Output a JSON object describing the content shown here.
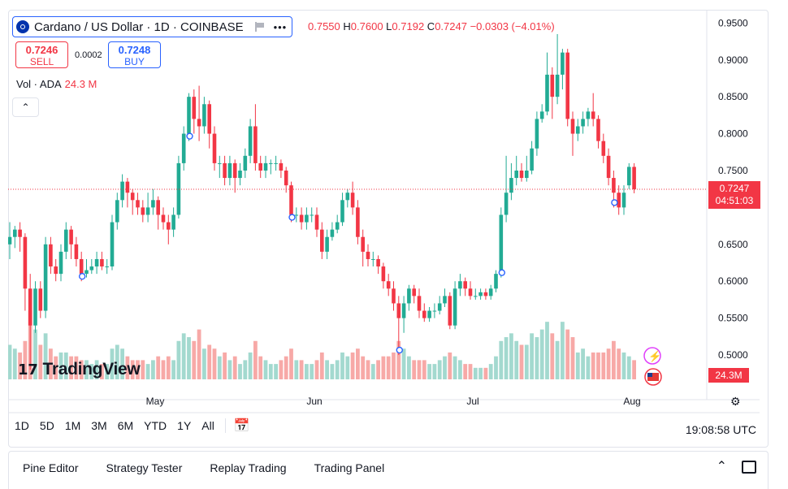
{
  "symbol": {
    "title": "Cardano / US Dollar · 1D · COINBASE",
    "more": "•••"
  },
  "ohlc": {
    "o_value": "0.7550",
    "h_label": "H",
    "h_value": "0.7600",
    "l_label": "L",
    "l_value": "0.7192",
    "c_label": "C",
    "c_value": "0.7247",
    "change": "−0.0303 (−4.01%)"
  },
  "trade": {
    "sell_price": "0.7246",
    "sell_label": "SELL",
    "spread": "0.0002",
    "buy_price": "0.7248",
    "buy_label": "BUY"
  },
  "volume": {
    "label": "Vol · ADA",
    "value": "24.3 M",
    "scale_label": "24.3M"
  },
  "last_price": {
    "price": "0.7247",
    "countdown": "04:51:03"
  },
  "logo_text": "TradingView",
  "time_ranges": [
    "1D",
    "5D",
    "1M",
    "3M",
    "6M",
    "YTD",
    "1Y",
    "All"
  ],
  "clock": "19:08:58 UTC",
  "bottom_tabs": [
    "Pine Editor",
    "Strategy Tester",
    "Replay Trading",
    "Trading Panel"
  ],
  "colors": {
    "up": "#22ab94",
    "down": "#f23645",
    "up_vol": "#a3d9cf",
    "down_vol": "#f7a9a7",
    "accent": "#2962ff"
  },
  "chart_data": {
    "type": "candlestick",
    "x_tick_labels": [
      "May",
      "Jun",
      "Jul",
      "Aug"
    ],
    "y_ticks": [
      0.95,
      0.9,
      0.85,
      0.8,
      0.75,
      0.65,
      0.6,
      0.55,
      0.5
    ],
    "ylim": [
      0.467,
      0.968
    ],
    "last_price": 0.7247,
    "candles": [
      {
        "o": 0.65,
        "c": 0.66,
        "h": 0.68,
        "l": 0.63,
        "v": 0.9
      },
      {
        "o": 0.66,
        "c": 0.67,
        "h": 0.675,
        "l": 0.645,
        "v": 0.8
      },
      {
        "o": 0.67,
        "c": 0.66,
        "h": 0.68,
        "l": 0.64,
        "v": 0.7
      },
      {
        "o": 0.66,
        "c": 0.59,
        "h": 0.665,
        "l": 0.56,
        "v": 1.0
      },
      {
        "o": 0.59,
        "c": 0.54,
        "h": 0.61,
        "l": 0.48,
        "v": 1.8
      },
      {
        "o": 0.54,
        "c": 0.59,
        "h": 0.6,
        "l": 0.53,
        "v": 1.3
      },
      {
        "o": 0.59,
        "c": 0.56,
        "h": 0.6,
        "l": 0.55,
        "v": 0.9
      },
      {
        "o": 0.56,
        "c": 0.65,
        "h": 0.66,
        "l": 0.55,
        "v": 1.2
      },
      {
        "o": 0.65,
        "c": 0.62,
        "h": 0.66,
        "l": 0.61,
        "v": 0.8
      },
      {
        "o": 0.62,
        "c": 0.61,
        "h": 0.63,
        "l": 0.6,
        "v": 0.6
      },
      {
        "o": 0.61,
        "c": 0.64,
        "h": 0.65,
        "l": 0.6,
        "v": 0.7
      },
      {
        "o": 0.64,
        "c": 0.67,
        "h": 0.68,
        "l": 0.63,
        "v": 0.7
      },
      {
        "o": 0.67,
        "c": 0.65,
        "h": 0.675,
        "l": 0.63,
        "v": 0.6
      },
      {
        "o": 0.65,
        "c": 0.63,
        "h": 0.66,
        "l": 0.62,
        "v": 0.6
      },
      {
        "o": 0.63,
        "c": 0.61,
        "h": 0.64,
        "l": 0.6,
        "v": 0.5
      },
      {
        "o": 0.61,
        "c": 0.615,
        "h": 0.63,
        "l": 0.605,
        "v": 0.5
      },
      {
        "o": 0.615,
        "c": 0.62,
        "h": 0.63,
        "l": 0.61,
        "v": 0.4
      },
      {
        "o": 0.62,
        "c": 0.63,
        "h": 0.64,
        "l": 0.61,
        "v": 0.5
      },
      {
        "o": 0.63,
        "c": 0.62,
        "h": 0.64,
        "l": 0.615,
        "v": 0.4
      },
      {
        "o": 0.62,
        "c": 0.62,
        "h": 0.63,
        "l": 0.61,
        "v": 0.4
      },
      {
        "o": 0.62,
        "c": 0.68,
        "h": 0.69,
        "l": 0.615,
        "v": 0.8
      },
      {
        "o": 0.68,
        "c": 0.71,
        "h": 0.72,
        "l": 0.67,
        "v": 0.9
      },
      {
        "o": 0.71,
        "c": 0.735,
        "h": 0.745,
        "l": 0.7,
        "v": 0.8
      },
      {
        "o": 0.735,
        "c": 0.72,
        "h": 0.74,
        "l": 0.7,
        "v": 0.6
      },
      {
        "o": 0.72,
        "c": 0.71,
        "h": 0.725,
        "l": 0.69,
        "v": 0.5
      },
      {
        "o": 0.71,
        "c": 0.7,
        "h": 0.72,
        "l": 0.69,
        "v": 0.5
      },
      {
        "o": 0.7,
        "c": 0.69,
        "h": 0.71,
        "l": 0.68,
        "v": 0.5
      },
      {
        "o": 0.69,
        "c": 0.7,
        "h": 0.72,
        "l": 0.68,
        "v": 0.4
      },
      {
        "o": 0.7,
        "c": 0.71,
        "h": 0.725,
        "l": 0.69,
        "v": 0.5
      },
      {
        "o": 0.71,
        "c": 0.69,
        "h": 0.715,
        "l": 0.67,
        "v": 0.6
      },
      {
        "o": 0.69,
        "c": 0.68,
        "h": 0.7,
        "l": 0.67,
        "v": 0.5
      },
      {
        "o": 0.68,
        "c": 0.67,
        "h": 0.69,
        "l": 0.65,
        "v": 0.6
      },
      {
        "o": 0.67,
        "c": 0.69,
        "h": 0.7,
        "l": 0.66,
        "v": 0.5
      },
      {
        "o": 0.69,
        "c": 0.76,
        "h": 0.77,
        "l": 0.685,
        "v": 1.0
      },
      {
        "o": 0.76,
        "c": 0.8,
        "h": 0.81,
        "l": 0.75,
        "v": 1.2
      },
      {
        "o": 0.8,
        "c": 0.85,
        "h": 0.855,
        "l": 0.79,
        "v": 1.1
      },
      {
        "o": 0.85,
        "c": 0.82,
        "h": 0.86,
        "l": 0.8,
        "v": 1.0
      },
      {
        "o": 0.82,
        "c": 0.81,
        "h": 0.865,
        "l": 0.79,
        "v": 1.3
      },
      {
        "o": 0.81,
        "c": 0.84,
        "h": 0.85,
        "l": 0.8,
        "v": 0.8
      },
      {
        "o": 0.84,
        "c": 0.8,
        "h": 0.845,
        "l": 0.78,
        "v": 0.9
      },
      {
        "o": 0.8,
        "c": 0.76,
        "h": 0.81,
        "l": 0.75,
        "v": 0.8
      },
      {
        "o": 0.76,
        "c": 0.76,
        "h": 0.77,
        "l": 0.74,
        "v": 0.6
      },
      {
        "o": 0.76,
        "c": 0.74,
        "h": 0.77,
        "l": 0.73,
        "v": 0.7
      },
      {
        "o": 0.74,
        "c": 0.76,
        "h": 0.77,
        "l": 0.73,
        "v": 0.5
      },
      {
        "o": 0.76,
        "c": 0.74,
        "h": 0.765,
        "l": 0.72,
        "v": 0.6
      },
      {
        "o": 0.74,
        "c": 0.75,
        "h": 0.76,
        "l": 0.73,
        "v": 0.4
      },
      {
        "o": 0.75,
        "c": 0.77,
        "h": 0.78,
        "l": 0.74,
        "v": 0.5
      },
      {
        "o": 0.77,
        "c": 0.81,
        "h": 0.82,
        "l": 0.76,
        "v": 0.7
      },
      {
        "o": 0.81,
        "c": 0.76,
        "h": 0.84,
        "l": 0.75,
        "v": 1.0
      },
      {
        "o": 0.76,
        "c": 0.75,
        "h": 0.77,
        "l": 0.74,
        "v": 0.6
      },
      {
        "o": 0.75,
        "c": 0.76,
        "h": 0.77,
        "l": 0.74,
        "v": 0.5
      },
      {
        "o": 0.76,
        "c": 0.76,
        "h": 0.765,
        "l": 0.745,
        "v": 0.4
      },
      {
        "o": 0.76,
        "c": 0.76,
        "h": 0.77,
        "l": 0.75,
        "v": 0.4
      },
      {
        "o": 0.76,
        "c": 0.75,
        "h": 0.765,
        "l": 0.74,
        "v": 0.5
      },
      {
        "o": 0.75,
        "c": 0.73,
        "h": 0.755,
        "l": 0.72,
        "v": 0.6
      },
      {
        "o": 0.73,
        "c": 0.69,
        "h": 0.735,
        "l": 0.68,
        "v": 0.8
      },
      {
        "o": 0.69,
        "c": 0.69,
        "h": 0.7,
        "l": 0.68,
        "v": 0.5
      },
      {
        "o": 0.69,
        "c": 0.68,
        "h": 0.7,
        "l": 0.67,
        "v": 0.5
      },
      {
        "o": 0.68,
        "c": 0.69,
        "h": 0.7,
        "l": 0.67,
        "v": 0.4
      },
      {
        "o": 0.69,
        "c": 0.69,
        "h": 0.7,
        "l": 0.68,
        "v": 0.4
      },
      {
        "o": 0.69,
        "c": 0.67,
        "h": 0.7,
        "l": 0.66,
        "v": 0.5
      },
      {
        "o": 0.67,
        "c": 0.64,
        "h": 0.68,
        "l": 0.63,
        "v": 0.7
      },
      {
        "o": 0.64,
        "c": 0.66,
        "h": 0.67,
        "l": 0.63,
        "v": 0.5
      },
      {
        "o": 0.66,
        "c": 0.67,
        "h": 0.68,
        "l": 0.655,
        "v": 0.4
      },
      {
        "o": 0.67,
        "c": 0.68,
        "h": 0.69,
        "l": 0.665,
        "v": 0.5
      },
      {
        "o": 0.68,
        "c": 0.71,
        "h": 0.72,
        "l": 0.675,
        "v": 0.7
      },
      {
        "o": 0.71,
        "c": 0.72,
        "h": 0.725,
        "l": 0.7,
        "v": 0.6
      },
      {
        "o": 0.72,
        "c": 0.7,
        "h": 0.735,
        "l": 0.69,
        "v": 0.7
      },
      {
        "o": 0.7,
        "c": 0.66,
        "h": 0.71,
        "l": 0.65,
        "v": 0.8
      },
      {
        "o": 0.66,
        "c": 0.64,
        "h": 0.67,
        "l": 0.62,
        "v": 0.6
      },
      {
        "o": 0.64,
        "c": 0.63,
        "h": 0.65,
        "l": 0.62,
        "v": 0.5
      },
      {
        "o": 0.63,
        "c": 0.63,
        "h": 0.64,
        "l": 0.62,
        "v": 0.4
      },
      {
        "o": 0.63,
        "c": 0.62,
        "h": 0.635,
        "l": 0.61,
        "v": 0.5
      },
      {
        "o": 0.62,
        "c": 0.6,
        "h": 0.625,
        "l": 0.59,
        "v": 0.6
      },
      {
        "o": 0.6,
        "c": 0.59,
        "h": 0.61,
        "l": 0.58,
        "v": 0.6
      },
      {
        "o": 0.59,
        "c": 0.57,
        "h": 0.6,
        "l": 0.56,
        "v": 0.7
      },
      {
        "o": 0.57,
        "c": 0.55,
        "h": 0.58,
        "l": 0.5,
        "v": 1.0
      },
      {
        "o": 0.55,
        "c": 0.57,
        "h": 0.58,
        "l": 0.53,
        "v": 0.8
      },
      {
        "o": 0.57,
        "c": 0.59,
        "h": 0.595,
        "l": 0.56,
        "v": 0.6
      },
      {
        "o": 0.59,
        "c": 0.58,
        "h": 0.595,
        "l": 0.57,
        "v": 0.5
      },
      {
        "o": 0.58,
        "c": 0.56,
        "h": 0.59,
        "l": 0.55,
        "v": 0.5
      },
      {
        "o": 0.56,
        "c": 0.55,
        "h": 0.57,
        "l": 0.545,
        "v": 0.5
      },
      {
        "o": 0.55,
        "c": 0.56,
        "h": 0.565,
        "l": 0.545,
        "v": 0.4
      },
      {
        "o": 0.56,
        "c": 0.56,
        "h": 0.57,
        "l": 0.55,
        "v": 0.4
      },
      {
        "o": 0.56,
        "c": 0.57,
        "h": 0.58,
        "l": 0.555,
        "v": 0.5
      },
      {
        "o": 0.57,
        "c": 0.58,
        "h": 0.59,
        "l": 0.565,
        "v": 0.6
      },
      {
        "o": 0.58,
        "c": 0.54,
        "h": 0.585,
        "l": 0.535,
        "v": 0.7
      },
      {
        "o": 0.54,
        "c": 0.59,
        "h": 0.6,
        "l": 0.535,
        "v": 0.6
      },
      {
        "o": 0.59,
        "c": 0.6,
        "h": 0.61,
        "l": 0.58,
        "v": 0.5
      },
      {
        "o": 0.6,
        "c": 0.59,
        "h": 0.605,
        "l": 0.58,
        "v": 0.4
      },
      {
        "o": 0.59,
        "c": 0.58,
        "h": 0.6,
        "l": 0.575,
        "v": 0.4
      },
      {
        "o": 0.58,
        "c": 0.58,
        "h": 0.59,
        "l": 0.575,
        "v": 0.3
      },
      {
        "o": 0.58,
        "c": 0.585,
        "h": 0.59,
        "l": 0.575,
        "v": 0.3
      },
      {
        "o": 0.585,
        "c": 0.58,
        "h": 0.59,
        "l": 0.575,
        "v": 0.3
      },
      {
        "o": 0.58,
        "c": 0.59,
        "h": 0.595,
        "l": 0.575,
        "v": 0.4
      },
      {
        "o": 0.59,
        "c": 0.61,
        "h": 0.615,
        "l": 0.585,
        "v": 0.6
      },
      {
        "o": 0.61,
        "c": 0.69,
        "h": 0.7,
        "l": 0.605,
        "v": 1.0
      },
      {
        "o": 0.69,
        "c": 0.72,
        "h": 0.77,
        "l": 0.68,
        "v": 1.1
      },
      {
        "o": 0.72,
        "c": 0.74,
        "h": 0.76,
        "l": 0.71,
        "v": 1.2
      },
      {
        "o": 0.74,
        "c": 0.75,
        "h": 0.77,
        "l": 0.73,
        "v": 1.0
      },
      {
        "o": 0.75,
        "c": 0.74,
        "h": 0.76,
        "l": 0.735,
        "v": 0.9
      },
      {
        "o": 0.74,
        "c": 0.75,
        "h": 0.77,
        "l": 0.735,
        "v": 0.9
      },
      {
        "o": 0.75,
        "c": 0.78,
        "h": 0.79,
        "l": 0.745,
        "v": 1.2
      },
      {
        "o": 0.78,
        "c": 0.82,
        "h": 0.83,
        "l": 0.77,
        "v": 1.1
      },
      {
        "o": 0.82,
        "c": 0.83,
        "h": 0.84,
        "l": 0.815,
        "v": 1.3
      },
      {
        "o": 0.83,
        "c": 0.88,
        "h": 0.91,
        "l": 0.825,
        "v": 1.5
      },
      {
        "o": 0.88,
        "c": 0.85,
        "h": 0.89,
        "l": 0.82,
        "v": 1.2
      },
      {
        "o": 0.85,
        "c": 0.88,
        "h": 0.935,
        "l": 0.84,
        "v": 1.0
      },
      {
        "o": 0.88,
        "c": 0.91,
        "h": 0.915,
        "l": 0.86,
        "v": 1.5
      },
      {
        "o": 0.91,
        "c": 0.82,
        "h": 0.915,
        "l": 0.81,
        "v": 1.3
      },
      {
        "o": 0.82,
        "c": 0.8,
        "h": 0.83,
        "l": 0.77,
        "v": 1.1
      },
      {
        "o": 0.8,
        "c": 0.81,
        "h": 0.82,
        "l": 0.79,
        "v": 0.7
      },
      {
        "o": 0.81,
        "c": 0.82,
        "h": 0.83,
        "l": 0.8,
        "v": 0.8
      },
      {
        "o": 0.82,
        "c": 0.83,
        "h": 0.835,
        "l": 0.81,
        "v": 0.6
      },
      {
        "o": 0.83,
        "c": 0.82,
        "h": 0.855,
        "l": 0.81,
        "v": 0.7
      },
      {
        "o": 0.82,
        "c": 0.79,
        "h": 0.825,
        "l": 0.78,
        "v": 0.7
      },
      {
        "o": 0.79,
        "c": 0.77,
        "h": 0.8,
        "l": 0.76,
        "v": 0.7
      },
      {
        "o": 0.77,
        "c": 0.74,
        "h": 0.78,
        "l": 0.73,
        "v": 0.8
      },
      {
        "o": 0.74,
        "c": 0.72,
        "h": 0.75,
        "l": 0.7,
        "v": 1.0
      },
      {
        "o": 0.72,
        "c": 0.7,
        "h": 0.73,
        "l": 0.69,
        "v": 0.8
      },
      {
        "o": 0.7,
        "c": 0.72,
        "h": 0.73,
        "l": 0.69,
        "v": 0.7
      },
      {
        "o": 0.73,
        "c": 0.755,
        "h": 0.76,
        "l": 0.725,
        "v": 0.6
      },
      {
        "o": 0.755,
        "c": 0.7247,
        "h": 0.76,
        "l": 0.7192,
        "v": 0.5
      }
    ]
  }
}
